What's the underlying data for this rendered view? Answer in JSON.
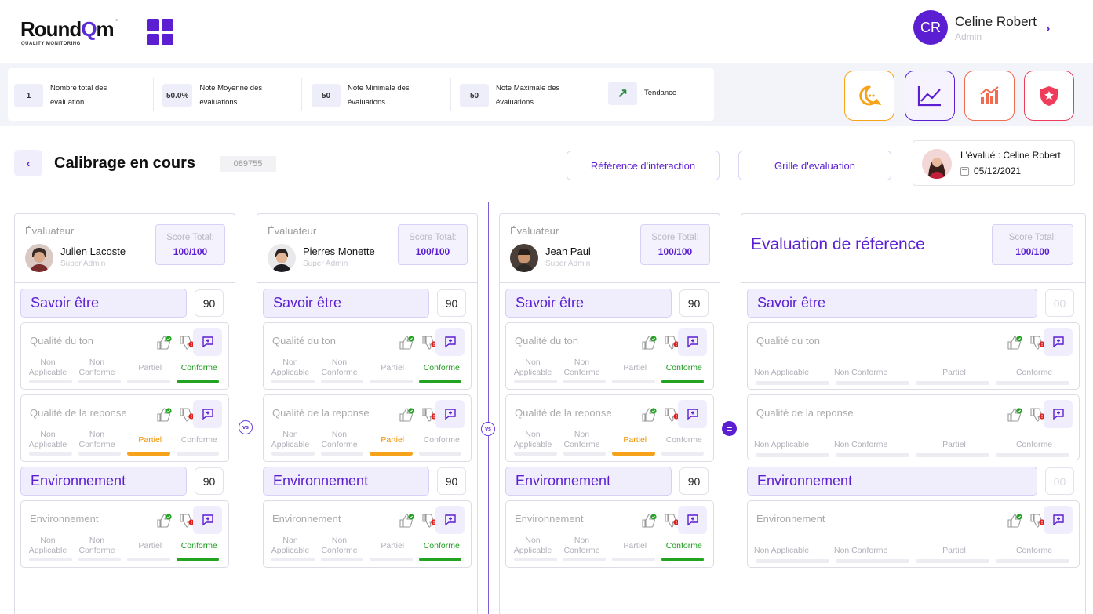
{
  "brand": {
    "name_prefix": "Round",
    "name_q": "Q",
    "name_suffix": "m",
    "tm": "™",
    "tagline": "QUALITY MONITORING"
  },
  "user": {
    "initials": "CR",
    "name": "Celine Robert",
    "role": "Admin",
    "accent": "#5b1fd1"
  },
  "stats": [
    {
      "value": "1",
      "label": "Nombre total des évaluation"
    },
    {
      "value": "50.0%",
      "label": "Note Moyenne des évaluations"
    },
    {
      "value": "50",
      "label": "Note Minimale des évaluations"
    },
    {
      "value": "50",
      "label": "Note Maximale des évaluations"
    },
    {
      "value": "",
      "label": "Tendance",
      "icon": "trend-up-icon"
    }
  ],
  "toolbar": [
    {
      "icon": "chat-bubble-icon",
      "color": "#f7a21b"
    },
    {
      "icon": "line-chart-icon",
      "color": "#5b1fd1"
    },
    {
      "icon": "bar-chart-icon",
      "color": "#f26b4f"
    },
    {
      "icon": "shield-star-icon",
      "color": "#ee3d5a"
    }
  ],
  "page": {
    "title": "Calibrage en cours",
    "code": "089755",
    "ref_button": "Référence d'interaction",
    "grid_button": "Grille d'evaluation",
    "evaluated_label": "L'évalué : Celine Robert",
    "evaluated_date": "05/12/2021"
  },
  "separators": {
    "vs": "vs",
    "eq": "="
  },
  "panels": [
    {
      "label": "Évaluateur",
      "name": "Julien Lacoste",
      "role": "Super Admin",
      "score_label": "Score Total:",
      "score": "100/100",
      "sections": [
        {
          "title": "Savoir être",
          "score": "90",
          "criteria": [
            {
              "name": "Qualité du ton",
              "options": [
                "Non Applicable",
                "Non Conforme",
                "Partiel",
                "Conforme"
              ],
              "selected": "Conforme"
            },
            {
              "name": "Qualité de la reponse",
              "options": [
                "Non Applicable",
                "Non Conforme",
                "Partiel",
                "Conforme"
              ],
              "selected": "Partiel"
            }
          ]
        },
        {
          "title": "Environnement",
          "score": "90",
          "criteria": [
            {
              "name": "Environnement",
              "options": [
                "Non Applicable",
                "Non Conforme",
                "Partiel",
                "Conforme"
              ],
              "selected": "Conforme"
            }
          ]
        }
      ]
    },
    {
      "label": "Évaluateur",
      "name": "Pierres Monette",
      "role": "Super Admin",
      "score_label": "Score Total:",
      "score": "100/100",
      "sections": [
        {
          "title": "Savoir être",
          "score": "90",
          "criteria": [
            {
              "name": "Qualité du ton",
              "options": [
                "Non Applicable",
                "Non Conforme",
                "Partiel",
                "Conforme"
              ],
              "selected": "Conforme"
            },
            {
              "name": "Qualité de la reponse",
              "options": [
                "Non Applicable",
                "Non Conforme",
                "Partiel",
                "Conforme"
              ],
              "selected": "Partiel"
            }
          ]
        },
        {
          "title": "Environnement",
          "score": "90",
          "criteria": [
            {
              "name": "Environnement",
              "options": [
                "Non Applicable",
                "Non Conforme",
                "Partiel",
                "Conforme"
              ],
              "selected": "Conforme"
            }
          ]
        }
      ]
    },
    {
      "label": "Évaluateur",
      "name": "Jean Paul",
      "role": "Super Admin",
      "score_label": "Score Total:",
      "score": "100/100",
      "sections": [
        {
          "title": "Savoir être",
          "score": "90",
          "criteria": [
            {
              "name": "Qualité du ton",
              "options": [
                "Non Applicable",
                "Non Conforme",
                "Partiel",
                "Conforme"
              ],
              "selected": "Conforme"
            },
            {
              "name": "Qualité de la reponse",
              "options": [
                "Non Applicable",
                "Non Conforme",
                "Partiel",
                "Conforme"
              ],
              "selected": "Partiel"
            }
          ]
        },
        {
          "title": "Environnement",
          "score": "90",
          "criteria": [
            {
              "name": "Environnement",
              "options": [
                "Non Applicable",
                "Non Conforme",
                "Partiel",
                "Conforme"
              ],
              "selected": "Conforme"
            }
          ]
        }
      ]
    }
  ],
  "reference": {
    "title": "Evaluation de réference",
    "score_label": "Score Total:",
    "score": "100/100",
    "sections": [
      {
        "title": "Savoir être",
        "score": "00",
        "criteria": [
          {
            "name": "Qualité du ton",
            "options": [
              "Non Applicable",
              "Non Conforme",
              "Partiel",
              "Conforme"
            ],
            "selected": ""
          },
          {
            "name": "Qualité de la reponse",
            "options": [
              "Non Applicable",
              "Non Conforme",
              "Partiel",
              "Conforme"
            ],
            "selected": ""
          }
        ]
      },
      {
        "title": "Environnement",
        "score": "00",
        "criteria": [
          {
            "name": "Environnement",
            "options": [
              "Non Applicable",
              "Non Conforme",
              "Partiel",
              "Conforme"
            ],
            "selected": ""
          }
        ]
      }
    ]
  }
}
